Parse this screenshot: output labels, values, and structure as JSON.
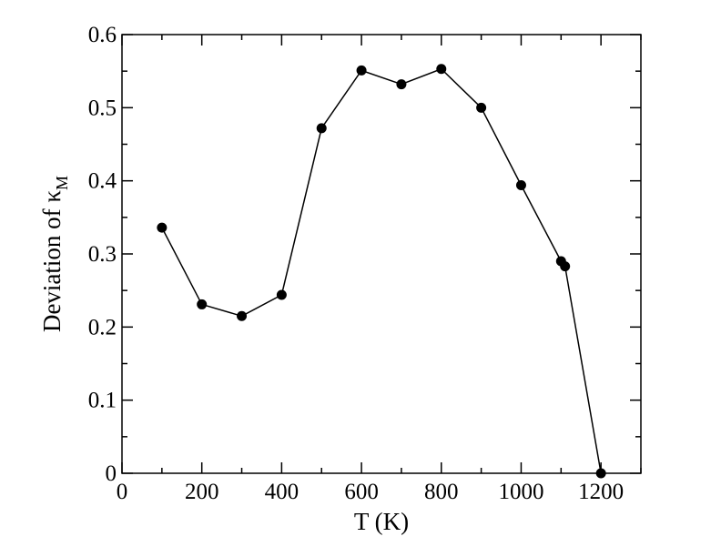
{
  "chart_data": {
    "type": "line",
    "title": "",
    "xlabel": "T (K)",
    "ylabel": {
      "main": "Deviation of ",
      "symbol": "κ",
      "subscript": "M"
    },
    "xlim": [
      0,
      1300
    ],
    "ylim": [
      0,
      0.6
    ],
    "xticks": [
      0,
      200,
      400,
      600,
      800,
      1000,
      1200
    ],
    "xtick_labels": [
      "0",
      "200",
      "400",
      "600",
      "800",
      "1000",
      "1200"
    ],
    "yticks": [
      0,
      0.1,
      0.2,
      0.3,
      0.4,
      0.5,
      0.6
    ],
    "ytick_labels": [
      "0",
      "0.1",
      "0.2",
      "0.3",
      "0.4",
      "0.5",
      "0.6"
    ],
    "grid": false,
    "legend": "none",
    "series": [
      {
        "x": [
          100,
          200,
          300,
          400,
          500,
          600,
          700,
          800,
          900,
          1000,
          1100,
          1110,
          1200
        ],
        "y": [
          0.336,
          0.231,
          0.215,
          0.244,
          0.472,
          0.551,
          0.532,
          0.553,
          0.5,
          0.394,
          0.29,
          0.283,
          0.0
        ],
        "color": "#000000",
        "marker": "circle"
      }
    ]
  }
}
